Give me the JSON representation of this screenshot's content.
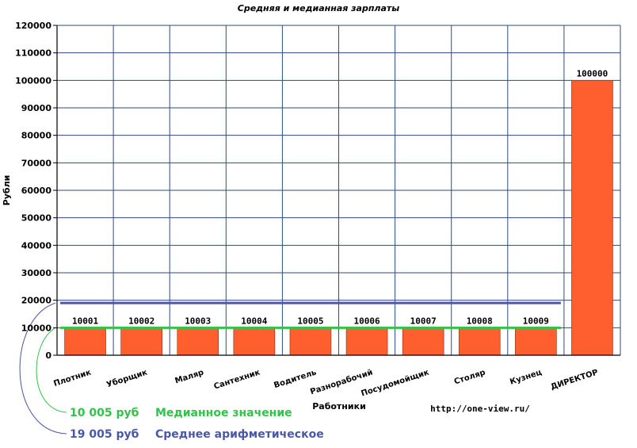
{
  "chart_data": {
    "type": "bar",
    "title": "Средняя и медианная зарплаты",
    "xlabel": "Работники",
    "ylabel": "Рубли",
    "categories": [
      "Плотник",
      "Уборщик",
      "Маляр",
      "Сантехник",
      "Водитель",
      "Разнорабочий",
      "Посудомойщик",
      "Столяр",
      "Кузнец",
      "ДИРЕКТОР"
    ],
    "values": [
      10001,
      10002,
      10003,
      10004,
      10005,
      10006,
      10007,
      10008,
      10009,
      100000
    ],
    "ylim": [
      0,
      120000
    ],
    "ytick_step": 10000,
    "grid": true,
    "bar_color": "#ff5f2e",
    "reference_lines": [
      {
        "value": 10005,
        "color": "#33c24a",
        "amount_label": "10 005 руб",
        "description": "Медианное значение"
      },
      {
        "value": 19005,
        "color": "#4a58a8",
        "amount_label": "19 005 руб",
        "description": "Среднее арифметическое"
      }
    ]
  },
  "source_url": "http://one-view.ru/"
}
